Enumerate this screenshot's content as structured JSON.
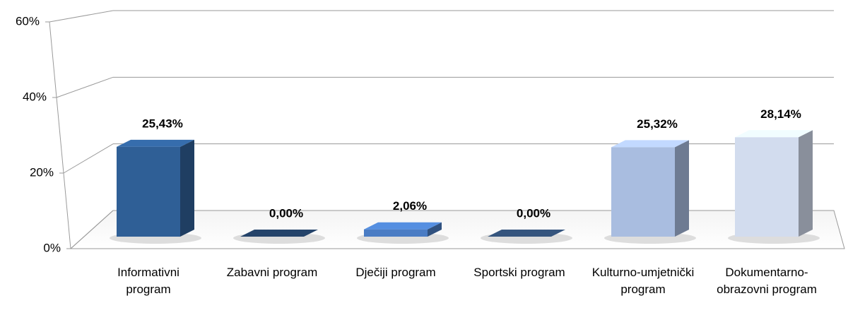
{
  "chart_data": {
    "type": "bar3d",
    "categories": [
      "Informativni program",
      "Zabavni program",
      "Dječiji program",
      "Sportski program",
      "Kulturno-umjetnički program",
      "Dokumentarno-obrazovni program"
    ],
    "values": [
      25.43,
      0,
      2.06,
      0,
      25.32,
      28.14
    ],
    "value_labels": [
      "25,43%",
      "0,00%",
      "2,06%",
      "0,00%",
      "25,32%",
      "28,14%"
    ],
    "colors": [
      "#2f5f96",
      "#1f3a5c",
      "#4a7cc4",
      "#2e4a6e",
      "#a9bde0",
      "#d2dcee"
    ],
    "ylim": [
      0,
      60
    ],
    "yticks": [
      {
        "value": 0,
        "label": "0%"
      },
      {
        "value": 20,
        "label": "20%"
      },
      {
        "value": 40,
        "label": "40%"
      },
      {
        "value": 60,
        "label": "60%"
      }
    ],
    "grid": true
  }
}
